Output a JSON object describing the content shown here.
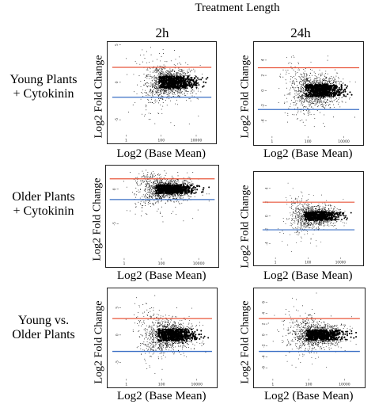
{
  "figure": {
    "title": "Treatment Length",
    "columns": [
      "2h",
      "24h"
    ],
    "rows": [
      "Young Plants\n+ Cytokinin",
      "Older Plants\n+ Cytokinin",
      "Young vs.\nOlder Plants"
    ]
  },
  "colors": {
    "up_threshold": "#e8553a",
    "down_threshold": "#3a6fc4",
    "points": "#000000",
    "highlight_points": "#d9403a"
  },
  "chart_data": [
    {
      "type": "scatter",
      "row": "Young Plants\n+ Cytokinin",
      "column": "2h",
      "xlabel": "Log2 (Base Mean)",
      "ylabel": "Log2 Fold Change",
      "xscale": "log",
      "xlim": [
        0.5,
        50000
      ],
      "xticks": [
        1,
        100,
        10000
      ],
      "ylim": [
        -7,
        5
      ],
      "yticks": [
        -5,
        0,
        5
      ],
      "upper_threshold": 2,
      "lower_threshold": -2,
      "cloud": {
        "x_center": 300,
        "y_mean": 0.0,
        "y_spread": 0.9
      }
    },
    {
      "type": "scatter",
      "row": "Young Plants\n+ Cytokinin",
      "column": "24h",
      "xlabel": "Log2 (Base Mean)",
      "ylabel": "Log2 Fold Change",
      "xscale": "log",
      "xlim": [
        0.5,
        50000
      ],
      "xticks": [
        1,
        100,
        10000
      ],
      "ylim": [
        -6,
        6
      ],
      "yticks": [
        -4,
        -2,
        0,
        2,
        4
      ],
      "upper_threshold": 3,
      "lower_threshold": -2.5,
      "cloud": {
        "x_center": 300,
        "y_mean": 0.0,
        "y_spread": 0.9
      }
    },
    {
      "type": "scatter",
      "row": "Older Plants\n+ Cytokinin",
      "column": "2h",
      "xlabel": "Log2 (Base Mean)",
      "ylabel": "Log2 Fold Change",
      "xscale": "log",
      "xlim": [
        0.5,
        50000
      ],
      "xticks": [
        1,
        100,
        10000
      ],
      "ylim": [
        -10,
        3
      ],
      "yticks": [
        -5,
        0
      ],
      "upper_threshold": 1.5,
      "lower_threshold": -1.5,
      "cloud": {
        "x_center": 200,
        "y_mean": 0.0,
        "y_spread": 0.7
      }
    },
    {
      "type": "scatter",
      "row": "Older Plants\n+ Cytokinin",
      "column": "24h",
      "xlabel": "Log2 (Base Mean)",
      "ylabel": "Log2 Fold Change",
      "xscale": "log",
      "xlim": [
        0.5,
        50000
      ],
      "xticks": [
        1,
        100,
        10000
      ],
      "ylim": [
        -6,
        6
      ],
      "yticks": [
        -4,
        -2,
        0,
        2,
        4
      ],
      "upper_threshold": 2,
      "lower_threshold": -2,
      "cloud": {
        "x_center": 250,
        "y_mean": 0.0,
        "y_spread": 0.7
      }
    },
    {
      "type": "scatter",
      "row": "Young vs.\nOlder Plants",
      "column": "2h",
      "xlabel": "Log2 (Base Mean)",
      "ylabel": "Log2 Fold Change",
      "xscale": "log",
      "xlim": [
        0.5,
        50000
      ],
      "xticks": [
        1,
        100,
        10000
      ],
      "ylim": [
        -8,
        8
      ],
      "yticks": [
        -5,
        0,
        5
      ],
      "upper_threshold": 3,
      "lower_threshold": -3,
      "cloud": {
        "x_center": 250,
        "y_mean": 0.0,
        "y_spread": 1.2
      }
    },
    {
      "type": "scatter",
      "row": "Young vs.\nOlder Plants",
      "column": "24h",
      "xlabel": "Log2 (Base Mean)",
      "ylabel": "Log2 Fold Change",
      "xscale": "log",
      "xlim": [
        0.5,
        50000
      ],
      "xticks": [
        1,
        100,
        10000
      ],
      "ylim": [
        -8,
        8
      ],
      "yticks": [
        -6,
        -4,
        -2,
        0,
        2,
        4,
        6
      ],
      "upper_threshold": 3,
      "lower_threshold": -3,
      "cloud": {
        "x_center": 300,
        "y_mean": 0.0,
        "y_spread": 1.0
      }
    }
  ]
}
